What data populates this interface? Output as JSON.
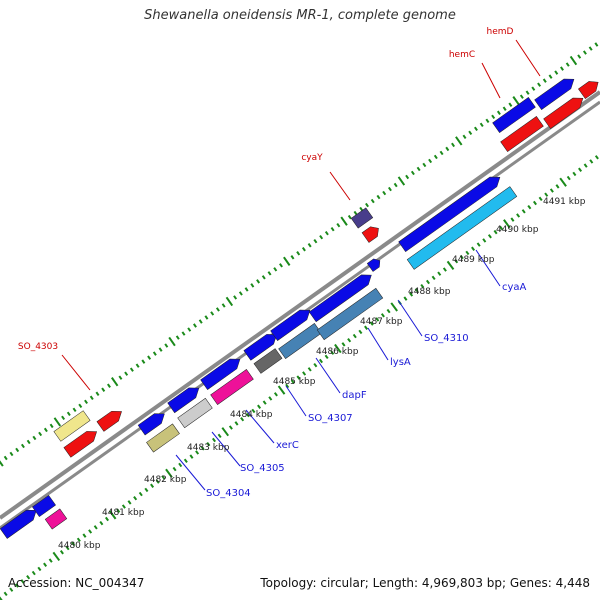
{
  "title": "Shewanella oneidensis MR-1, complete genome",
  "footer": {
    "accession": "Accession: NC_004347",
    "summary": "Topology: circular; Length: 4,969,803 bp; Genes: 4,448"
  },
  "colors": {
    "backbone": "#8a8a8a",
    "ticks": "#1a8a1a",
    "outer_label": "#cc0000",
    "inner_label": "#1a1ad6",
    "scale_label": "#222222"
  },
  "scale_labels": [
    "4480 kbp",
    "4481 kbp",
    "4482 kbp",
    "4483 kbp",
    "4484 kbp",
    "4485 kbp",
    "4486 kbp",
    "4487 kbp",
    "4488 kbp",
    "4489 kbp",
    "4490 kbp",
    "4491 kbp"
  ],
  "outer_gene_labels": [
    "SO_4303",
    "cyaY",
    "hemC",
    "hemD"
  ],
  "inner_gene_labels": [
    "SO_4304",
    "SO_4305",
    "xerC",
    "SO_4307",
    "dapF",
    "lysA",
    "SO_4310",
    "cyaA"
  ],
  "feature_colors": {
    "blue": "#0a0ae6",
    "red": "#ee1111",
    "khaki": "#f0e68c",
    "darkkhaki": "#c8c27a",
    "magenta": "#ee1199",
    "silver": "#cccccc",
    "dimgray": "#666666",
    "steelblue": "#4682b4",
    "deepskyblue": "#22bbee",
    "darkslateblue": "#483d8b"
  }
}
